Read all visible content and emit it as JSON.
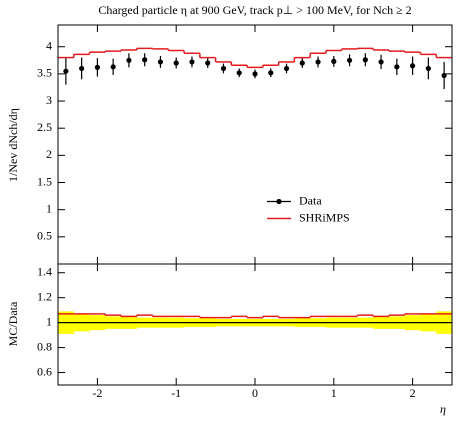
{
  "chart_data": [
    {
      "type": "line",
      "title": "Charged particle η at 900 GeV, track p⊥ > 100 MeV, for Nch ≥ 2",
      "ylabel": "1/Nev dNch/dη",
      "xlim": [
        -2.5,
        2.5
      ],
      "ylim": [
        0,
        4.4
      ],
      "yticks": [
        0.5,
        1,
        1.5,
        2,
        2.5,
        3,
        3.5,
        4
      ],
      "legend": "center",
      "series": [
        {
          "name": "Data",
          "color": "#000000",
          "x": [
            -2.4,
            -2.2,
            -2.0,
            -1.8,
            -1.6,
            -1.4,
            -1.2,
            -1.0,
            -0.8,
            -0.6,
            -0.4,
            -0.2,
            0,
            0.2,
            0.4,
            0.6,
            0.8,
            1.0,
            1.2,
            1.4,
            1.6,
            1.8,
            2.0,
            2.2,
            2.4
          ],
          "values": [
            3.55,
            3.6,
            3.62,
            3.63,
            3.75,
            3.76,
            3.72,
            3.7,
            3.72,
            3.7,
            3.6,
            3.52,
            3.5,
            3.52,
            3.6,
            3.7,
            3.72,
            3.73,
            3.75,
            3.76,
            3.72,
            3.63,
            3.65,
            3.6,
            3.47
          ],
          "errors": [
            0.25,
            0.2,
            0.17,
            0.15,
            0.13,
            0.12,
            0.11,
            0.1,
            0.1,
            0.09,
            0.09,
            0.08,
            0.08,
            0.08,
            0.09,
            0.09,
            0.1,
            0.1,
            0.11,
            0.12,
            0.13,
            0.15,
            0.17,
            0.2,
            0.25
          ]
        },
        {
          "name": "SHRiMPS",
          "color": "#e41a1c",
          "bins": [
            -2.5,
            -2.3,
            -2.1,
            -1.9,
            -1.7,
            -1.5,
            -1.3,
            -1.1,
            -0.9,
            -0.7,
            -0.5,
            -0.3,
            -0.1,
            0.1,
            0.3,
            0.5,
            0.7,
            0.9,
            1.1,
            1.3,
            1.5,
            1.7,
            1.9,
            2.1,
            2.3,
            2.5
          ],
          "values": [
            3.8,
            3.86,
            3.9,
            3.92,
            3.94,
            3.97,
            3.96,
            3.93,
            3.88,
            3.8,
            3.72,
            3.66,
            3.62,
            3.66,
            3.72,
            3.8,
            3.88,
            3.93,
            3.96,
            3.97,
            3.94,
            3.92,
            3.9,
            3.86,
            3.8
          ]
        }
      ]
    },
    {
      "type": "ratio",
      "ylabel": "MC/Data",
      "xlabel": "η",
      "xlim": [
        -2.5,
        2.5
      ],
      "ylim": [
        0.5,
        1.47
      ],
      "xticks": [
        -2,
        -1,
        0,
        1,
        2
      ],
      "yticks": [
        0.6,
        0.8,
        1,
        1.2,
        1.4
      ],
      "reference": 1,
      "band": {
        "color": "#ffff00",
        "bins": [
          -2.5,
          -2.3,
          -2.1,
          -1.9,
          -1.7,
          -1.5,
          -1.3,
          -1.1,
          -0.9,
          -0.7,
          -0.5,
          -0.3,
          -0.1,
          0.1,
          0.3,
          0.5,
          0.7,
          0.9,
          1.1,
          1.3,
          1.5,
          1.7,
          1.9,
          2.1,
          2.3,
          2.5
        ],
        "errors": [
          0.09,
          0.07,
          0.06,
          0.05,
          0.05,
          0.04,
          0.04,
          0.04,
          0.035,
          0.035,
          0.03,
          0.03,
          0.03,
          0.03,
          0.03,
          0.035,
          0.035,
          0.04,
          0.04,
          0.04,
          0.05,
          0.05,
          0.06,
          0.07,
          0.09
        ]
      },
      "series": [
        {
          "color": "#e41a1c",
          "bins": [
            -2.5,
            -2.3,
            -2.1,
            -1.9,
            -1.7,
            -1.5,
            -1.3,
            -1.1,
            -0.9,
            -0.7,
            -0.5,
            -0.3,
            -0.1,
            0.1,
            0.3,
            0.5,
            0.7,
            0.9,
            1.1,
            1.3,
            1.5,
            1.7,
            1.9,
            2.1,
            2.3,
            2.5
          ],
          "values": [
            1.07,
            1.07,
            1.07,
            1.06,
            1.05,
            1.06,
            1.05,
            1.05,
            1.05,
            1.04,
            1.04,
            1.05,
            1.04,
            1.05,
            1.04,
            1.04,
            1.05,
            1.05,
            1.05,
            1.06,
            1.05,
            1.06,
            1.07,
            1.07,
            1.07
          ]
        }
      ]
    }
  ]
}
